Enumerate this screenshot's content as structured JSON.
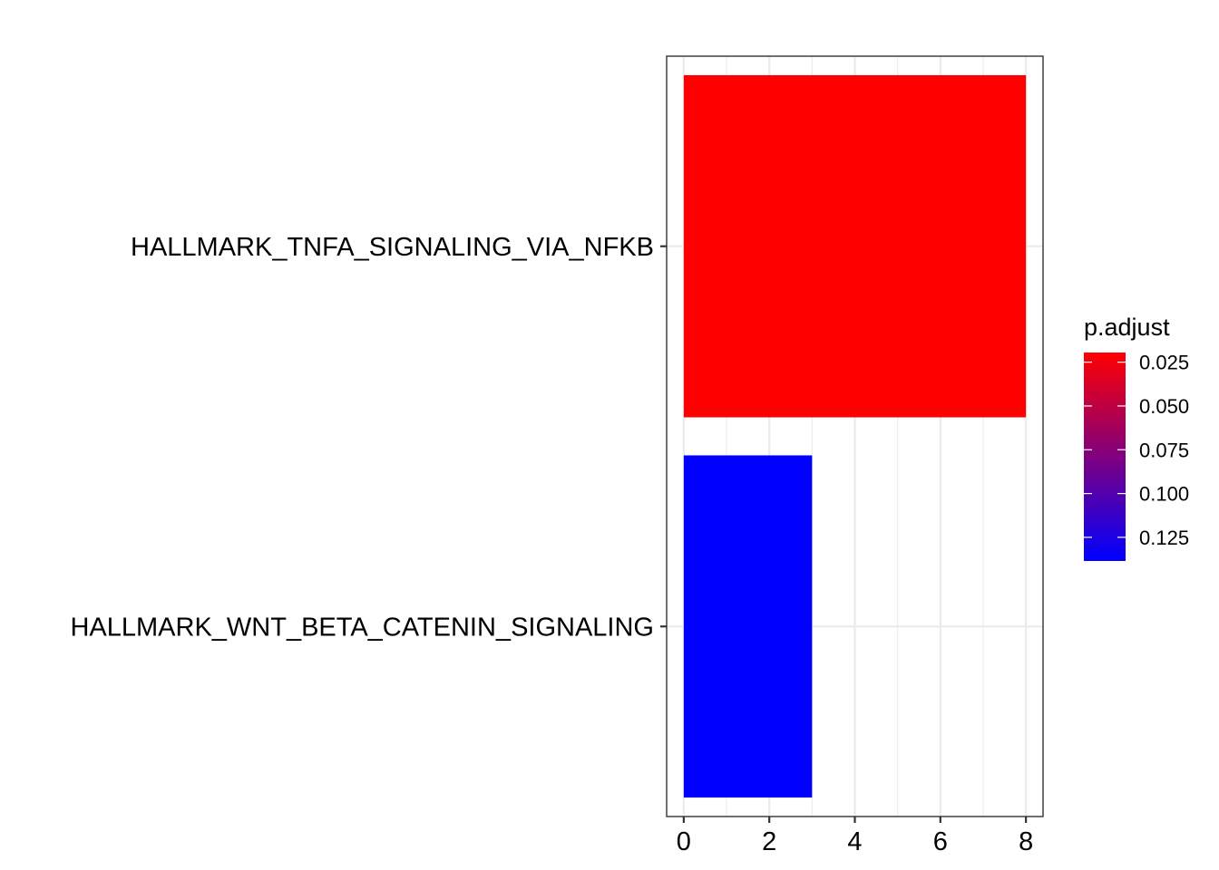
{
  "chart_data": {
    "type": "bar",
    "orientation": "horizontal",
    "title": "",
    "xlabel": "",
    "ylabel": "",
    "categories": [
      "HALLMARK_TNFA_SIGNALING_VIA_NFKB",
      "HALLMARK_WNT_BETA_CATENIN_SIGNALING"
    ],
    "values": [
      8,
      3
    ],
    "p_adjust": [
      0.0195,
      0.1385
    ],
    "xlim": [
      -0.4,
      8.4
    ],
    "x_ticks": [
      0,
      2,
      4,
      6,
      8
    ],
    "x_tick_labels": [
      "0",
      "2",
      "4",
      "6",
      "8"
    ],
    "grid": true,
    "legend": {
      "title": "p.adjust",
      "placement": "right",
      "type": "colorbar",
      "range": [
        0.0195,
        0.1385
      ],
      "low_color": "#FF0000",
      "high_color": "#0000FF",
      "ticks": [
        0.025,
        0.05,
        0.075,
        0.1,
        0.125
      ],
      "tick_labels": [
        "0.025",
        "0.050",
        "0.075",
        "0.100",
        "0.125"
      ]
    }
  }
}
